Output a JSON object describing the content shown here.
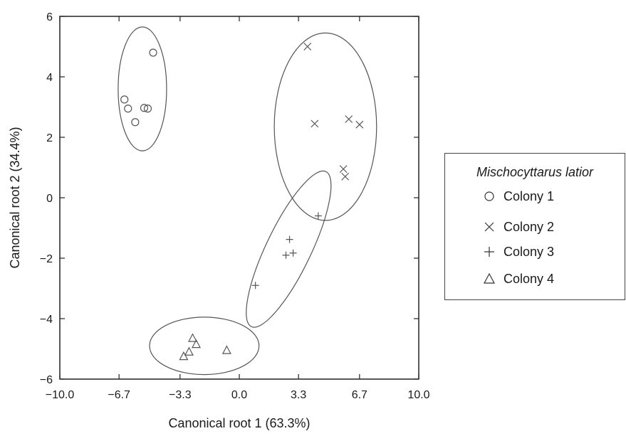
{
  "chart_data": {
    "type": "scatter",
    "title": "",
    "xlabel": "Canonical root 1 (63.3%)",
    "ylabel": "Canonical root 2 (34.4%)",
    "xlim": [
      -10.0,
      10.0
    ],
    "ylim": [
      -6,
      6
    ],
    "xticks": [
      "−10.0",
      "−6.7",
      "−3.3",
      "0.0",
      "3.3",
      "6.7",
      "10.0"
    ],
    "xtick_values": [
      -10.0,
      -6.7,
      -3.3,
      0.0,
      3.3,
      6.7,
      10.0
    ],
    "yticks": [
      "−6",
      "−4",
      "−2",
      "0",
      "2",
      "4",
      "6"
    ],
    "ytick_values": [
      -6,
      -4,
      -2,
      0,
      2,
      4,
      6
    ],
    "grid": false,
    "legend": {
      "title": "Mischocyttarus latior",
      "position": "right"
    },
    "series": [
      {
        "name": "Colony 1",
        "marker": "circle",
        "points": [
          [
            -4.8,
            4.8
          ],
          [
            -6.4,
            3.25
          ],
          [
            -6.2,
            2.95
          ],
          [
            -5.3,
            2.97
          ],
          [
            -5.1,
            2.95
          ],
          [
            -5.8,
            2.5
          ]
        ],
        "ellipse": {
          "cx": -5.4,
          "cy": 3.6,
          "rx": 1.35,
          "ry": 2.05,
          "angle": 0
        }
      },
      {
        "name": "Colony 2",
        "marker": "x",
        "points": [
          [
            3.8,
            5.0
          ],
          [
            4.2,
            2.45
          ],
          [
            6.1,
            2.6
          ],
          [
            6.7,
            2.42
          ],
          [
            5.8,
            0.95
          ],
          [
            5.9,
            0.7
          ]
        ],
        "ellipse": {
          "cx": 4.8,
          "cy": 2.35,
          "rx": 2.85,
          "ry": 3.1,
          "angle": 0
        }
      },
      {
        "name": "Colony 3",
        "marker": "plus",
        "points": [
          [
            4.4,
            -0.6
          ],
          [
            2.8,
            -1.38
          ],
          [
            2.6,
            -1.9
          ],
          [
            3.0,
            -1.83
          ],
          [
            0.9,
            -2.9
          ]
        ],
        "ellipse": {
          "cx": 2.75,
          "cy": -1.7,
          "rx": 3.3,
          "ry": 0.95,
          "angle": 51
        }
      },
      {
        "name": "Colony 4",
        "marker": "triangle",
        "points": [
          [
            -2.6,
            -4.65
          ],
          [
            -2.4,
            -4.85
          ],
          [
            -2.8,
            -5.1
          ],
          [
            -3.1,
            -5.25
          ],
          [
            -0.7,
            -5.05
          ]
        ],
        "ellipse": {
          "cx": -1.95,
          "cy": -4.9,
          "rx": 3.05,
          "ry": 0.95,
          "angle": 0
        }
      }
    ]
  }
}
